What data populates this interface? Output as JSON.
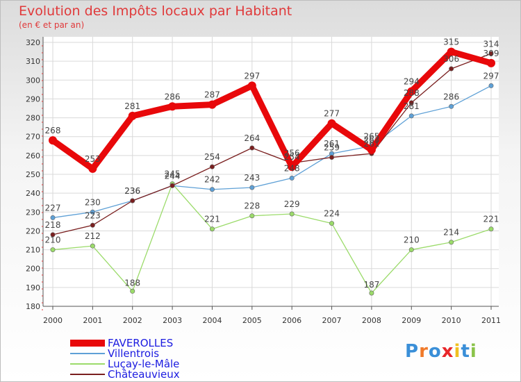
{
  "header": {
    "title": "Evolution des Impôts locaux par Habitant",
    "subtitle": "(en € et par an)"
  },
  "chart_data": {
    "type": "line",
    "title": "Evolution des Impôts locaux par Habitant",
    "subtitle": "(en € et par an)",
    "xlabel": "",
    "ylabel": "",
    "ylim": [
      180,
      320
    ],
    "yticks": [
      180,
      190,
      200,
      210,
      220,
      230,
      240,
      250,
      260,
      270,
      280,
      290,
      300,
      310,
      320
    ],
    "categories": [
      "2000",
      "2001",
      "2002",
      "2003",
      "2004",
      "2005",
      "2006",
      "2007",
      "2008",
      "2009",
      "2010",
      "2011"
    ],
    "grid": true,
    "series": [
      {
        "name": "FAVEROLLES",
        "color": "#e8080a",
        "values": [
          268,
          253,
          281,
          286,
          287,
          297,
          254,
          277,
          263,
          294,
          315,
          309
        ]
      },
      {
        "name": "Villentrois",
        "color": "#5ea0d6",
        "values": [
          227,
          230,
          236,
          244,
          242,
          243,
          248,
          261,
          265,
          281,
          286,
          297
        ]
      },
      {
        "name": "Luçay-le-Mâle",
        "color": "#9bdb6a",
        "values": [
          210,
          212,
          188,
          245,
          221,
          228,
          229,
          224,
          187,
          210,
          214,
          221
        ]
      },
      {
        "name": "Châteauvieux",
        "color": "#7a1f1f",
        "values": [
          218,
          223,
          236,
          244,
          254,
          264,
          256,
          259,
          261,
          288,
          306,
          314
        ]
      }
    ]
  },
  "legend": {
    "items": [
      "FAVEROLLES",
      "Villentrois",
      "Luçay-le-Mâle",
      "Châteauvieux"
    ]
  },
  "logo": {
    "text": "Proxiti",
    "letters": [
      "P",
      "r",
      "o",
      "x",
      "i",
      "t",
      "i"
    ],
    "colors": [
      "#3a8fd8",
      "#f07a2a",
      "#3a8fd8",
      "#e8262a",
      "#f0c020",
      "#3a8fd8",
      "#8bc34a"
    ]
  }
}
